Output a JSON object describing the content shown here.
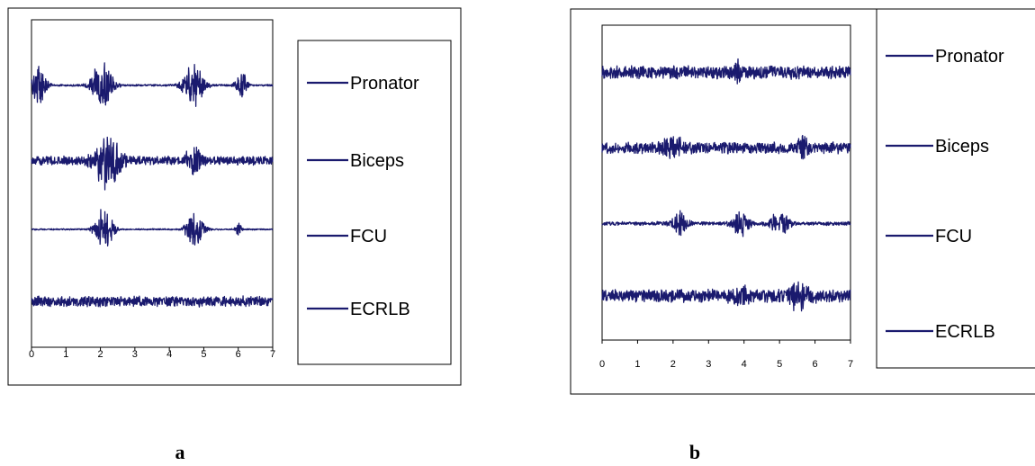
{
  "chart_data": [
    {
      "panel_label": "a",
      "type": "line",
      "x_ticks": [
        "0",
        "1",
        "2",
        "3",
        "4",
        "5",
        "6",
        "7"
      ],
      "xlim": [
        0,
        7
      ],
      "grid": false,
      "legend_position": "right",
      "line_color": "#1a1a6e",
      "series": [
        {
          "name": "Pronator",
          "baseline_level": 0.8,
          "noise_amplitude": 0.04,
          "bursts": [
            {
              "center": 0.2,
              "width": 0.5,
              "amplitude": 0.9
            },
            {
              "center": 2.05,
              "width": 0.7,
              "amplitude": 1.0
            },
            {
              "center": 4.7,
              "width": 0.7,
              "amplitude": 0.85
            },
            {
              "center": 6.1,
              "width": 0.4,
              "amplitude": 0.5
            }
          ]
        },
        {
          "name": "Biceps",
          "baseline_level": 0.57,
          "noise_amplitude": 0.18,
          "bursts": [
            {
              "center": 2.2,
              "width": 0.9,
              "amplitude": 1.0
            },
            {
              "center": 4.7,
              "width": 0.5,
              "amplitude": 0.5
            }
          ]
        },
        {
          "name": "FCU",
          "baseline_level": 0.36,
          "noise_amplitude": 0.03,
          "bursts": [
            {
              "center": 2.1,
              "width": 0.6,
              "amplitude": 0.9
            },
            {
              "center": 4.75,
              "width": 0.6,
              "amplitude": 0.8
            },
            {
              "center": 6.0,
              "width": 0.2,
              "amplitude": 0.3
            }
          ]
        },
        {
          "name": "ECRLB",
          "baseline_level": 0.14,
          "noise_amplitude": 0.22,
          "bursts": []
        }
      ]
    },
    {
      "panel_label": "b",
      "type": "line",
      "x_ticks": [
        "0",
        "1",
        "2",
        "3",
        "4",
        "5",
        "6",
        "7"
      ],
      "xlim": [
        0,
        7
      ],
      "grid": false,
      "legend_position": "right",
      "line_color": "#1a1a6e",
      "series": [
        {
          "name": "Pronator",
          "baseline_level": 0.85,
          "noise_amplitude": 0.28,
          "bursts": [
            {
              "center": 3.8,
              "width": 0.2,
              "amplitude": 0.4
            }
          ]
        },
        {
          "name": "Biceps",
          "baseline_level": 0.61,
          "noise_amplitude": 0.25,
          "bursts": [
            {
              "center": 2.0,
              "width": 0.6,
              "amplitude": 0.4
            },
            {
              "center": 5.7,
              "width": 0.4,
              "amplitude": 0.4
            }
          ]
        },
        {
          "name": "FCU",
          "baseline_level": 0.37,
          "noise_amplitude": 0.08,
          "bursts": [
            {
              "center": 2.2,
              "width": 0.5,
              "amplitude": 0.5
            },
            {
              "center": 3.9,
              "width": 0.5,
              "amplitude": 0.6
            },
            {
              "center": 5.0,
              "width": 0.6,
              "amplitude": 0.5
            }
          ]
        },
        {
          "name": "ECRLB",
          "baseline_level": 0.14,
          "noise_amplitude": 0.28,
          "bursts": [
            {
              "center": 3.9,
              "width": 0.5,
              "amplitude": 0.4
            },
            {
              "center": 5.5,
              "width": 0.7,
              "amplitude": 0.4
            }
          ]
        }
      ]
    }
  ]
}
